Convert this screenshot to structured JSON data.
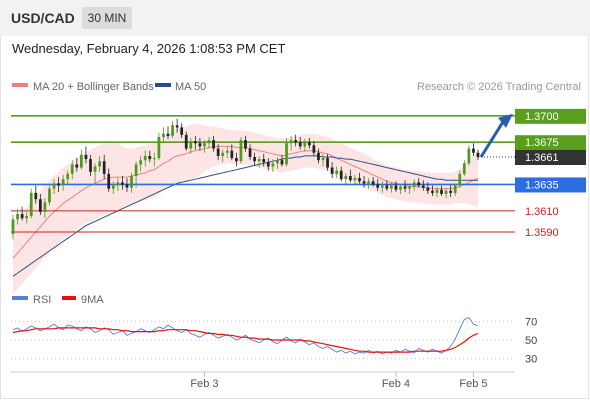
{
  "header": {
    "symbol": "USD/CAD",
    "timeframe": "30 MIN"
  },
  "timestamp": "Wednesday, February 4, 2026 1:08:53 PM CET",
  "legend": {
    "bollinger": {
      "label": "MA 20 + Bollinger Bands",
      "color": "#f08080"
    },
    "ma50": {
      "label": "MA 50",
      "color": "#2c4f8a"
    },
    "credit": "Research © 2026 Trading Central"
  },
  "rsi_legend": {
    "rsi": {
      "label": "RSI",
      "color": "#5b7fd6"
    },
    "ma9": {
      "label": "9MA",
      "color": "#e01010"
    }
  },
  "chart_data": [
    {
      "type": "candlestick",
      "title": "USD/CAD",
      "x_labels": [
        "Feb 3",
        "Feb 4",
        "Feb 5"
      ],
      "ylim": [
        1.3535,
        1.3715
      ],
      "last_price": 1.3661,
      "levels": [
        {
          "value": 1.37,
          "label": "1.3700",
          "kind": "resistance",
          "color": "#5a9e1e"
        },
        {
          "value": 1.3675,
          "label": "1.3675",
          "kind": "resistance",
          "color": "#5a9e1e"
        },
        {
          "value": 1.3635,
          "label": "1.3635",
          "kind": "pivot",
          "color": "#2b6ce0"
        },
        {
          "value": 1.361,
          "label": "1.3610",
          "kind": "support",
          "color": "#d02020"
        },
        {
          "value": 1.359,
          "label": "1.3590",
          "kind": "support",
          "color": "#d02020"
        }
      ],
      "ohlc": [
        [
          1.3588,
          1.3606,
          1.3583,
          1.3602
        ],
        [
          1.3602,
          1.3612,
          1.3597,
          1.3607
        ],
        [
          1.3607,
          1.3614,
          1.3601,
          1.3603
        ],
        [
          1.3603,
          1.3609,
          1.3598,
          1.3605
        ],
        [
          1.3605,
          1.3631,
          1.3603,
          1.3627
        ],
        [
          1.3627,
          1.3634,
          1.3617,
          1.3621
        ],
        [
          1.3621,
          1.3626,
          1.3606,
          1.3609
        ],
        [
          1.3609,
          1.3622,
          1.3603,
          1.3618
        ],
        [
          1.3618,
          1.3634,
          1.3615,
          1.3631
        ],
        [
          1.3631,
          1.364,
          1.3626,
          1.3636
        ],
        [
          1.3636,
          1.3642,
          1.3628,
          1.3634
        ],
        [
          1.3634,
          1.3644,
          1.3629,
          1.364
        ],
        [
          1.364,
          1.3648,
          1.3634,
          1.3645
        ],
        [
          1.3645,
          1.3658,
          1.364,
          1.3654
        ],
        [
          1.3654,
          1.366,
          1.3647,
          1.3651
        ],
        [
          1.3651,
          1.3668,
          1.3649,
          1.3663
        ],
        [
          1.3663,
          1.3671,
          1.3655,
          1.3659
        ],
        [
          1.3659,
          1.3663,
          1.3643,
          1.3647
        ],
        [
          1.3647,
          1.3655,
          1.3635,
          1.3652
        ],
        [
          1.3652,
          1.3662,
          1.3647,
          1.3657
        ],
        [
          1.3657,
          1.3663,
          1.364,
          1.3645
        ],
        [
          1.3645,
          1.365,
          1.3628,
          1.3631
        ],
        [
          1.3631,
          1.3638,
          1.3626,
          1.3634
        ],
        [
          1.3634,
          1.3641,
          1.3629,
          1.3637
        ],
        [
          1.3637,
          1.3643,
          1.363,
          1.3635
        ],
        [
          1.3635,
          1.3641,
          1.3628,
          1.3632
        ],
        [
          1.3632,
          1.3646,
          1.3627,
          1.3643
        ],
        [
          1.3643,
          1.3657,
          1.3632,
          1.3654
        ],
        [
          1.3654,
          1.3662,
          1.3647,
          1.3658
        ],
        [
          1.3658,
          1.3667,
          1.3652,
          1.3662
        ],
        [
          1.3662,
          1.3667,
          1.3656,
          1.3659
        ],
        [
          1.3659,
          1.3665,
          1.3652,
          1.366
        ],
        [
          1.366,
          1.3684,
          1.3658,
          1.368
        ],
        [
          1.368,
          1.3689,
          1.3674,
          1.3683
        ],
        [
          1.3683,
          1.369,
          1.3678,
          1.3681
        ],
        [
          1.3681,
          1.3695,
          1.3679,
          1.3691
        ],
        [
          1.3691,
          1.3697,
          1.3684,
          1.3689
        ],
        [
          1.3689,
          1.3693,
          1.3679,
          1.3682
        ],
        [
          1.3682,
          1.3685,
          1.3667,
          1.3669
        ],
        [
          1.3669,
          1.3679,
          1.3664,
          1.3676
        ],
        [
          1.3676,
          1.3681,
          1.3668,
          1.3674
        ],
        [
          1.3674,
          1.3679,
          1.3667,
          1.3671
        ],
        [
          1.3671,
          1.3677,
          1.3665,
          1.3674
        ],
        [
          1.3674,
          1.368,
          1.3669,
          1.3677
        ],
        [
          1.3677,
          1.3681,
          1.3666,
          1.3669
        ],
        [
          1.3669,
          1.3673,
          1.3658,
          1.3662
        ],
        [
          1.3662,
          1.3668,
          1.3656,
          1.3665
        ],
        [
          1.3665,
          1.3671,
          1.366,
          1.3667
        ],
        [
          1.3667,
          1.3673,
          1.3658,
          1.366
        ],
        [
          1.366,
          1.3665,
          1.3652,
          1.3657
        ],
        [
          1.3657,
          1.368,
          1.3655,
          1.3677
        ],
        [
          1.3677,
          1.3681,
          1.3666,
          1.3669
        ],
        [
          1.3669,
          1.3673,
          1.3658,
          1.3661
        ],
        [
          1.3661,
          1.3665,
          1.3653,
          1.3657
        ],
        [
          1.3657,
          1.3662,
          1.3651,
          1.3659
        ],
        [
          1.3659,
          1.3664,
          1.3652,
          1.3656
        ],
        [
          1.3656,
          1.366,
          1.3648,
          1.3652
        ],
        [
          1.3652,
          1.3659,
          1.3647,
          1.3655
        ],
        [
          1.3655,
          1.3661,
          1.365,
          1.3658
        ],
        [
          1.3658,
          1.3663,
          1.3652,
          1.3654
        ],
        [
          1.3654,
          1.3679,
          1.3652,
          1.3674
        ],
        [
          1.3674,
          1.3681,
          1.3667,
          1.3677
        ],
        [
          1.3677,
          1.3682,
          1.3671,
          1.3675
        ],
        [
          1.3675,
          1.368,
          1.3668,
          1.3671
        ],
        [
          1.3671,
          1.3678,
          1.3666,
          1.3675
        ],
        [
          1.3675,
          1.3679,
          1.3669,
          1.3672
        ],
        [
          1.3672,
          1.3676,
          1.3662,
          1.3665
        ],
        [
          1.3665,
          1.3669,
          1.3655,
          1.3658
        ],
        [
          1.3658,
          1.3664,
          1.3652,
          1.366
        ],
        [
          1.366,
          1.3664,
          1.3648,
          1.3651
        ],
        [
          1.3651,
          1.3656,
          1.3641,
          1.3645
        ],
        [
          1.3645,
          1.3652,
          1.3641,
          1.3648
        ],
        [
          1.3648,
          1.3652,
          1.3638,
          1.364
        ],
        [
          1.364,
          1.3646,
          1.3635,
          1.3643
        ],
        [
          1.3643,
          1.3649,
          1.3637,
          1.3639
        ],
        [
          1.3639,
          1.3644,
          1.3634,
          1.3641
        ],
        [
          1.3641,
          1.3646,
          1.3636,
          1.3638
        ],
        [
          1.3638,
          1.3643,
          1.3632,
          1.3636
        ],
        [
          1.3636,
          1.3641,
          1.3631,
          1.3638
        ],
        [
          1.3638,
          1.3642,
          1.3633,
          1.3635
        ],
        [
          1.3635,
          1.364,
          1.3629,
          1.3632
        ],
        [
          1.3632,
          1.3638,
          1.3627,
          1.3634
        ],
        [
          1.3634,
          1.3639,
          1.3629,
          1.3631
        ],
        [
          1.3631,
          1.3637,
          1.3627,
          1.3634
        ],
        [
          1.3634,
          1.3638,
          1.3628,
          1.363
        ],
        [
          1.363,
          1.3635,
          1.3626,
          1.3633
        ],
        [
          1.3633,
          1.3639,
          1.3628,
          1.3631
        ],
        [
          1.3631,
          1.3635,
          1.3626,
          1.3633
        ],
        [
          1.3633,
          1.364,
          1.3629,
          1.3637
        ],
        [
          1.3637,
          1.3641,
          1.3632,
          1.3634
        ],
        [
          1.3634,
          1.3639,
          1.3629,
          1.3632
        ],
        [
          1.3632,
          1.3637,
          1.3626,
          1.3629
        ],
        [
          1.3629,
          1.3634,
          1.3624,
          1.3627
        ],
        [
          1.3627,
          1.3633,
          1.3623,
          1.363
        ],
        [
          1.363,
          1.3634,
          1.3624,
          1.3626
        ],
        [
          1.3626,
          1.3632,
          1.3622,
          1.3629
        ],
        [
          1.3629,
          1.3634,
          1.3623,
          1.3627
        ],
        [
          1.3627,
          1.3636,
          1.3624,
          1.3634
        ],
        [
          1.3634,
          1.3648,
          1.3632,
          1.3645
        ],
        [
          1.3645,
          1.3658,
          1.3643,
          1.3655
        ],
        [
          1.3655,
          1.3672,
          1.3653,
          1.3669
        ],
        [
          1.3669,
          1.3674,
          1.3662,
          1.3665
        ],
        [
          1.3665,
          1.3668,
          1.3658,
          1.3661
        ]
      ],
      "bollinger_ma20": [
        1.3565,
        1.357,
        1.3575,
        1.358,
        1.3585,
        1.359,
        1.3595,
        1.36,
        1.3605,
        1.3609,
        1.3613,
        1.3617,
        1.362,
        1.3623,
        1.3626,
        1.3629,
        1.3632,
        1.3634,
        1.3636,
        1.3638,
        1.364,
        1.3641,
        1.3642,
        1.3642,
        1.3642,
        1.3642,
        1.3643,
        1.3644,
        1.3645,
        1.3646,
        1.3648,
        1.3649,
        1.3652,
        1.3655,
        1.3657,
        1.366,
        1.3662,
        1.3663,
        1.3664,
        1.3666,
        1.3667,
        1.3668,
        1.3669,
        1.367,
        1.3671,
        1.3671,
        1.3671,
        1.3671,
        1.3671,
        1.367,
        1.367,
        1.367,
        1.3669,
        1.3668,
        1.3667,
        1.3666,
        1.3665,
        1.3664,
        1.3663,
        1.3662,
        1.3663,
        1.3664,
        1.3665,
        1.3666,
        1.3667,
        1.3667,
        1.3667,
        1.3666,
        1.3665,
        1.3664,
        1.3662,
        1.366,
        1.3658,
        1.3656,
        1.3654,
        1.3652,
        1.365,
        1.3648,
        1.3646,
        1.3644,
        1.3642,
        1.364,
        1.3638,
        1.3637,
        1.3636,
        1.3635,
        1.3634,
        1.3633,
        1.3633,
        1.3633,
        1.3632,
        1.3632,
        1.3631,
        1.3631,
        1.3631,
        1.3631,
        1.3631,
        1.3632,
        1.3633,
        1.3635,
        1.3637,
        1.3639,
        1.3641
      ],
      "bollinger_width": [
        0.0034,
        0.0034,
        0.0034,
        0.0034,
        0.0034,
        0.0034,
        0.0034,
        0.0034,
        0.0034,
        0.0034,
        0.0034,
        0.0034,
        0.0034,
        0.0034,
        0.0034,
        0.0034,
        0.0034,
        0.0034,
        0.0034,
        0.0034,
        0.0034,
        0.0034,
        0.0034,
        0.0032,
        0.0029,
        0.0027,
        0.0026,
        0.0026,
        0.0026,
        0.0026,
        0.0026,
        0.0026,
        0.0026,
        0.0026,
        0.0026,
        0.0026,
        0.0026,
        0.0026,
        0.0026,
        0.0026,
        0.0026,
        0.0024,
        0.0022,
        0.002,
        0.0019,
        0.0018,
        0.0017,
        0.0016,
        0.0016,
        0.0016,
        0.0016,
        0.0016,
        0.0016,
        0.0016,
        0.0016,
        0.0016,
        0.0016,
        0.0016,
        0.0016,
        0.0016,
        0.0016,
        0.0016,
        0.0016,
        0.0016,
        0.0016,
        0.0016,
        0.0016,
        0.0016,
        0.0016,
        0.0016,
        0.0016,
        0.0016,
        0.0016,
        0.0016,
        0.0016,
        0.0016,
        0.0016,
        0.0016,
        0.0016,
        0.0015,
        0.0015,
        0.0015,
        0.0015,
        0.0015,
        0.0015,
        0.0015,
        0.0015,
        0.0015,
        0.0015,
        0.0015,
        0.0015,
        0.0015,
        0.0015,
        0.0015,
        0.0015,
        0.0015,
        0.0015,
        0.0015,
        0.0016,
        0.0018,
        0.0021,
        0.0024,
        0.0027
      ],
      "ma50": [
        1.3548,
        1.3551,
        1.3554,
        1.3557,
        1.356,
        1.3563,
        1.3566,
        1.3569,
        1.3572,
        1.3575,
        1.3578,
        1.3581,
        1.3584,
        1.3587,
        1.359,
        1.3593,
        1.3596,
        1.3598,
        1.36,
        1.3602,
        1.3604,
        1.3606,
        1.3608,
        1.361,
        1.3612,
        1.3614,
        1.3616,
        1.3618,
        1.362,
        1.3622,
        1.3624,
        1.3626,
        1.3628,
        1.363,
        1.3632,
        1.3634,
        1.3636,
        1.3637,
        1.3638,
        1.3639,
        1.364,
        1.3641,
        1.3642,
        1.3643,
        1.3644,
        1.3645,
        1.3646,
        1.3647,
        1.3648,
        1.3649,
        1.365,
        1.3651,
        1.3652,
        1.3653,
        1.3654,
        1.3655,
        1.3656,
        1.3657,
        1.3658,
        1.3659,
        1.366,
        1.366,
        1.3661,
        1.3661,
        1.3662,
        1.3662,
        1.3662,
        1.3662,
        1.3661,
        1.3661,
        1.3661,
        1.366,
        1.366,
        1.3659,
        1.3659,
        1.3658,
        1.3657,
        1.3656,
        1.3655,
        1.3654,
        1.3653,
        1.3652,
        1.3651,
        1.365,
        1.3649,
        1.3648,
        1.3647,
        1.3646,
        1.3645,
        1.3644,
        1.3643,
        1.3642,
        1.3641,
        1.364,
        1.364,
        1.3639,
        1.3639,
        1.3639,
        1.3639,
        1.3639,
        1.3639,
        1.3639,
        1.3639
      ],
      "forecast": {
        "from": 1.3661,
        "to": 1.37,
        "direction": "up"
      }
    },
    {
      "type": "line",
      "title": "RSI",
      "ylim": [
        20,
        80
      ],
      "yticks": [
        30,
        50,
        70
      ],
      "series": [
        {
          "name": "RSI",
          "color": "#5b7fd6",
          "values": [
            61,
            63,
            59,
            62,
            65,
            63,
            60,
            62,
            64,
            67,
            63,
            61,
            66,
            65,
            62,
            60,
            64,
            62,
            58,
            60,
            63,
            61,
            56,
            58,
            60,
            55,
            57,
            59,
            62,
            60,
            58,
            61,
            64,
            62,
            66,
            63,
            60,
            58,
            61,
            57,
            55,
            53,
            56,
            58,
            55,
            52,
            54,
            56,
            53,
            50,
            52,
            55,
            51,
            49,
            47,
            50,
            52,
            48,
            46,
            50,
            53,
            49,
            47,
            51,
            48,
            45,
            47,
            43,
            41,
            43,
            40,
            37,
            39,
            36,
            38,
            35,
            37,
            36,
            39,
            36,
            38,
            35,
            37,
            36,
            39,
            37,
            40,
            38,
            36,
            41,
            39,
            37,
            40,
            38,
            36,
            39,
            43,
            51,
            62,
            72,
            74,
            67,
            65
          ]
        },
        {
          "name": "9MA",
          "color": "#e01010",
          "values": [
            58,
            59,
            60,
            60,
            61,
            62,
            62,
            62,
            62,
            62,
            63,
            63,
            63,
            63,
            63,
            63,
            63,
            63,
            63,
            62,
            62,
            62,
            61,
            61,
            60,
            60,
            59,
            59,
            59,
            59,
            59,
            59,
            60,
            60,
            61,
            61,
            61,
            61,
            61,
            60,
            60,
            59,
            58,
            57,
            57,
            56,
            56,
            55,
            55,
            54,
            53,
            53,
            52,
            52,
            51,
            51,
            51,
            50,
            50,
            50,
            50,
            50,
            50,
            50,
            49,
            49,
            48,
            47,
            46,
            45,
            44,
            43,
            42,
            41,
            40,
            39,
            38,
            38,
            37,
            37,
            37,
            37,
            37,
            37,
            37,
            37,
            37,
            37,
            38,
            38,
            38,
            38,
            38,
            38,
            38,
            39,
            40,
            42,
            45,
            48,
            52,
            55,
            57
          ]
        }
      ]
    }
  ]
}
